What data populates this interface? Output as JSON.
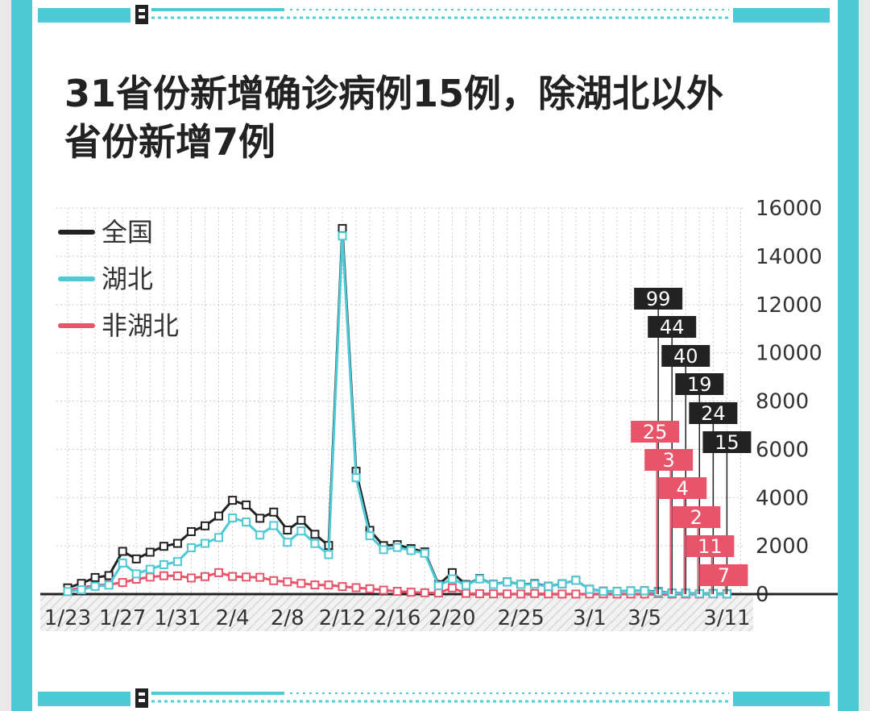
{
  "title_lines": [
    "31省份新增确诊病例15例，除湖北以外",
    "省份新增7例"
  ],
  "colors": {
    "frame": "#4ec9d6",
    "national": "#222222",
    "hubei": "#4ec9d6",
    "non_hubei": "#e8546a",
    "grid": "#cccccc",
    "axis_text": "#333333"
  },
  "chart_data": {
    "type": "line",
    "title": "31省份新增确诊病例15例，除湖北以外省份新增7例",
    "y_axis": {
      "position": "right",
      "ylim": [
        0,
        16000
      ],
      "ticks": [
        0,
        2000,
        4000,
        6000,
        8000,
        10000,
        12000,
        14000,
        16000
      ]
    },
    "x_tick_labels": [
      {
        "label": "1/23",
        "index": 0
      },
      {
        "label": "1/27",
        "index": 4
      },
      {
        "label": "1/31",
        "index": 8
      },
      {
        "label": "2/4",
        "index": 12
      },
      {
        "label": "2/8",
        "index": 16
      },
      {
        "label": "2/12",
        "index": 20
      },
      {
        "label": "2/16",
        "index": 24
      },
      {
        "label": "2/20",
        "index": 28
      },
      {
        "label": "2/25",
        "index": 33
      },
      {
        "label": "3/1",
        "index": 38
      },
      {
        "label": "3/5",
        "index": 42
      },
      {
        "label": "3/11",
        "index": 48
      }
    ],
    "legend": {
      "placement": "top-left",
      "items": [
        {
          "name": "全国",
          "series": 0
        },
        {
          "name": "湖北",
          "series": 1
        },
        {
          "name": "非湖北",
          "series": 2
        }
      ]
    },
    "series": [
      {
        "name": "全国",
        "values": [
          259,
          444,
          688,
          769,
          1771,
          1459,
          1737,
          1982,
          2102,
          2590,
          2829,
          3235,
          3887,
          3694,
          3143,
          3399,
          2656,
          3062,
          2478,
          2015,
          15152,
          5090,
          2641,
          2009,
          2048,
          1886,
          1749,
          394,
          889,
          397,
          648,
          409,
          508,
          406,
          433,
          327,
          427,
          573,
          202,
          125,
          119,
          139,
          143,
          99,
          44,
          40,
          19,
          24,
          15
        ]
      },
      {
        "name": "湖北",
        "values": [
          105,
          180,
          323,
          371,
          1291,
          840,
          1032,
          1220,
          1347,
          1921,
          2103,
          2345,
          3156,
          2987,
          2447,
          2841,
          2147,
          2618,
          2097,
          1638,
          14840,
          4823,
          2420,
          1843,
          1933,
          1807,
          1693,
          349,
          631,
          366,
          630,
          398,
          499,
          401,
          409,
          318,
          423,
          570,
          196,
          114,
          115,
          134,
          139,
          74,
          41,
          36,
          17,
          13,
          8
        ]
      },
      {
        "name": "非湖北",
        "values": [
          154,
          264,
          365,
          398,
          480,
          619,
          705,
          762,
          755,
          669,
          726,
          890,
          731,
          707,
          696,
          558,
          509,
          444,
          381,
          377,
          312,
          267,
          221,
          166,
          115,
          79,
          56,
          45,
          258,
          31,
          18,
          11,
          9,
          5,
          24,
          9,
          4,
          3,
          6,
          11,
          4,
          5,
          4,
          25,
          3,
          4,
          2,
          11,
          7
        ]
      }
    ],
    "annotations": {
      "national_last6": [
        99,
        44,
        40,
        19,
        24,
        15
      ],
      "non_hubei_last6": [
        25,
        3,
        4,
        2,
        11,
        7
      ]
    }
  }
}
